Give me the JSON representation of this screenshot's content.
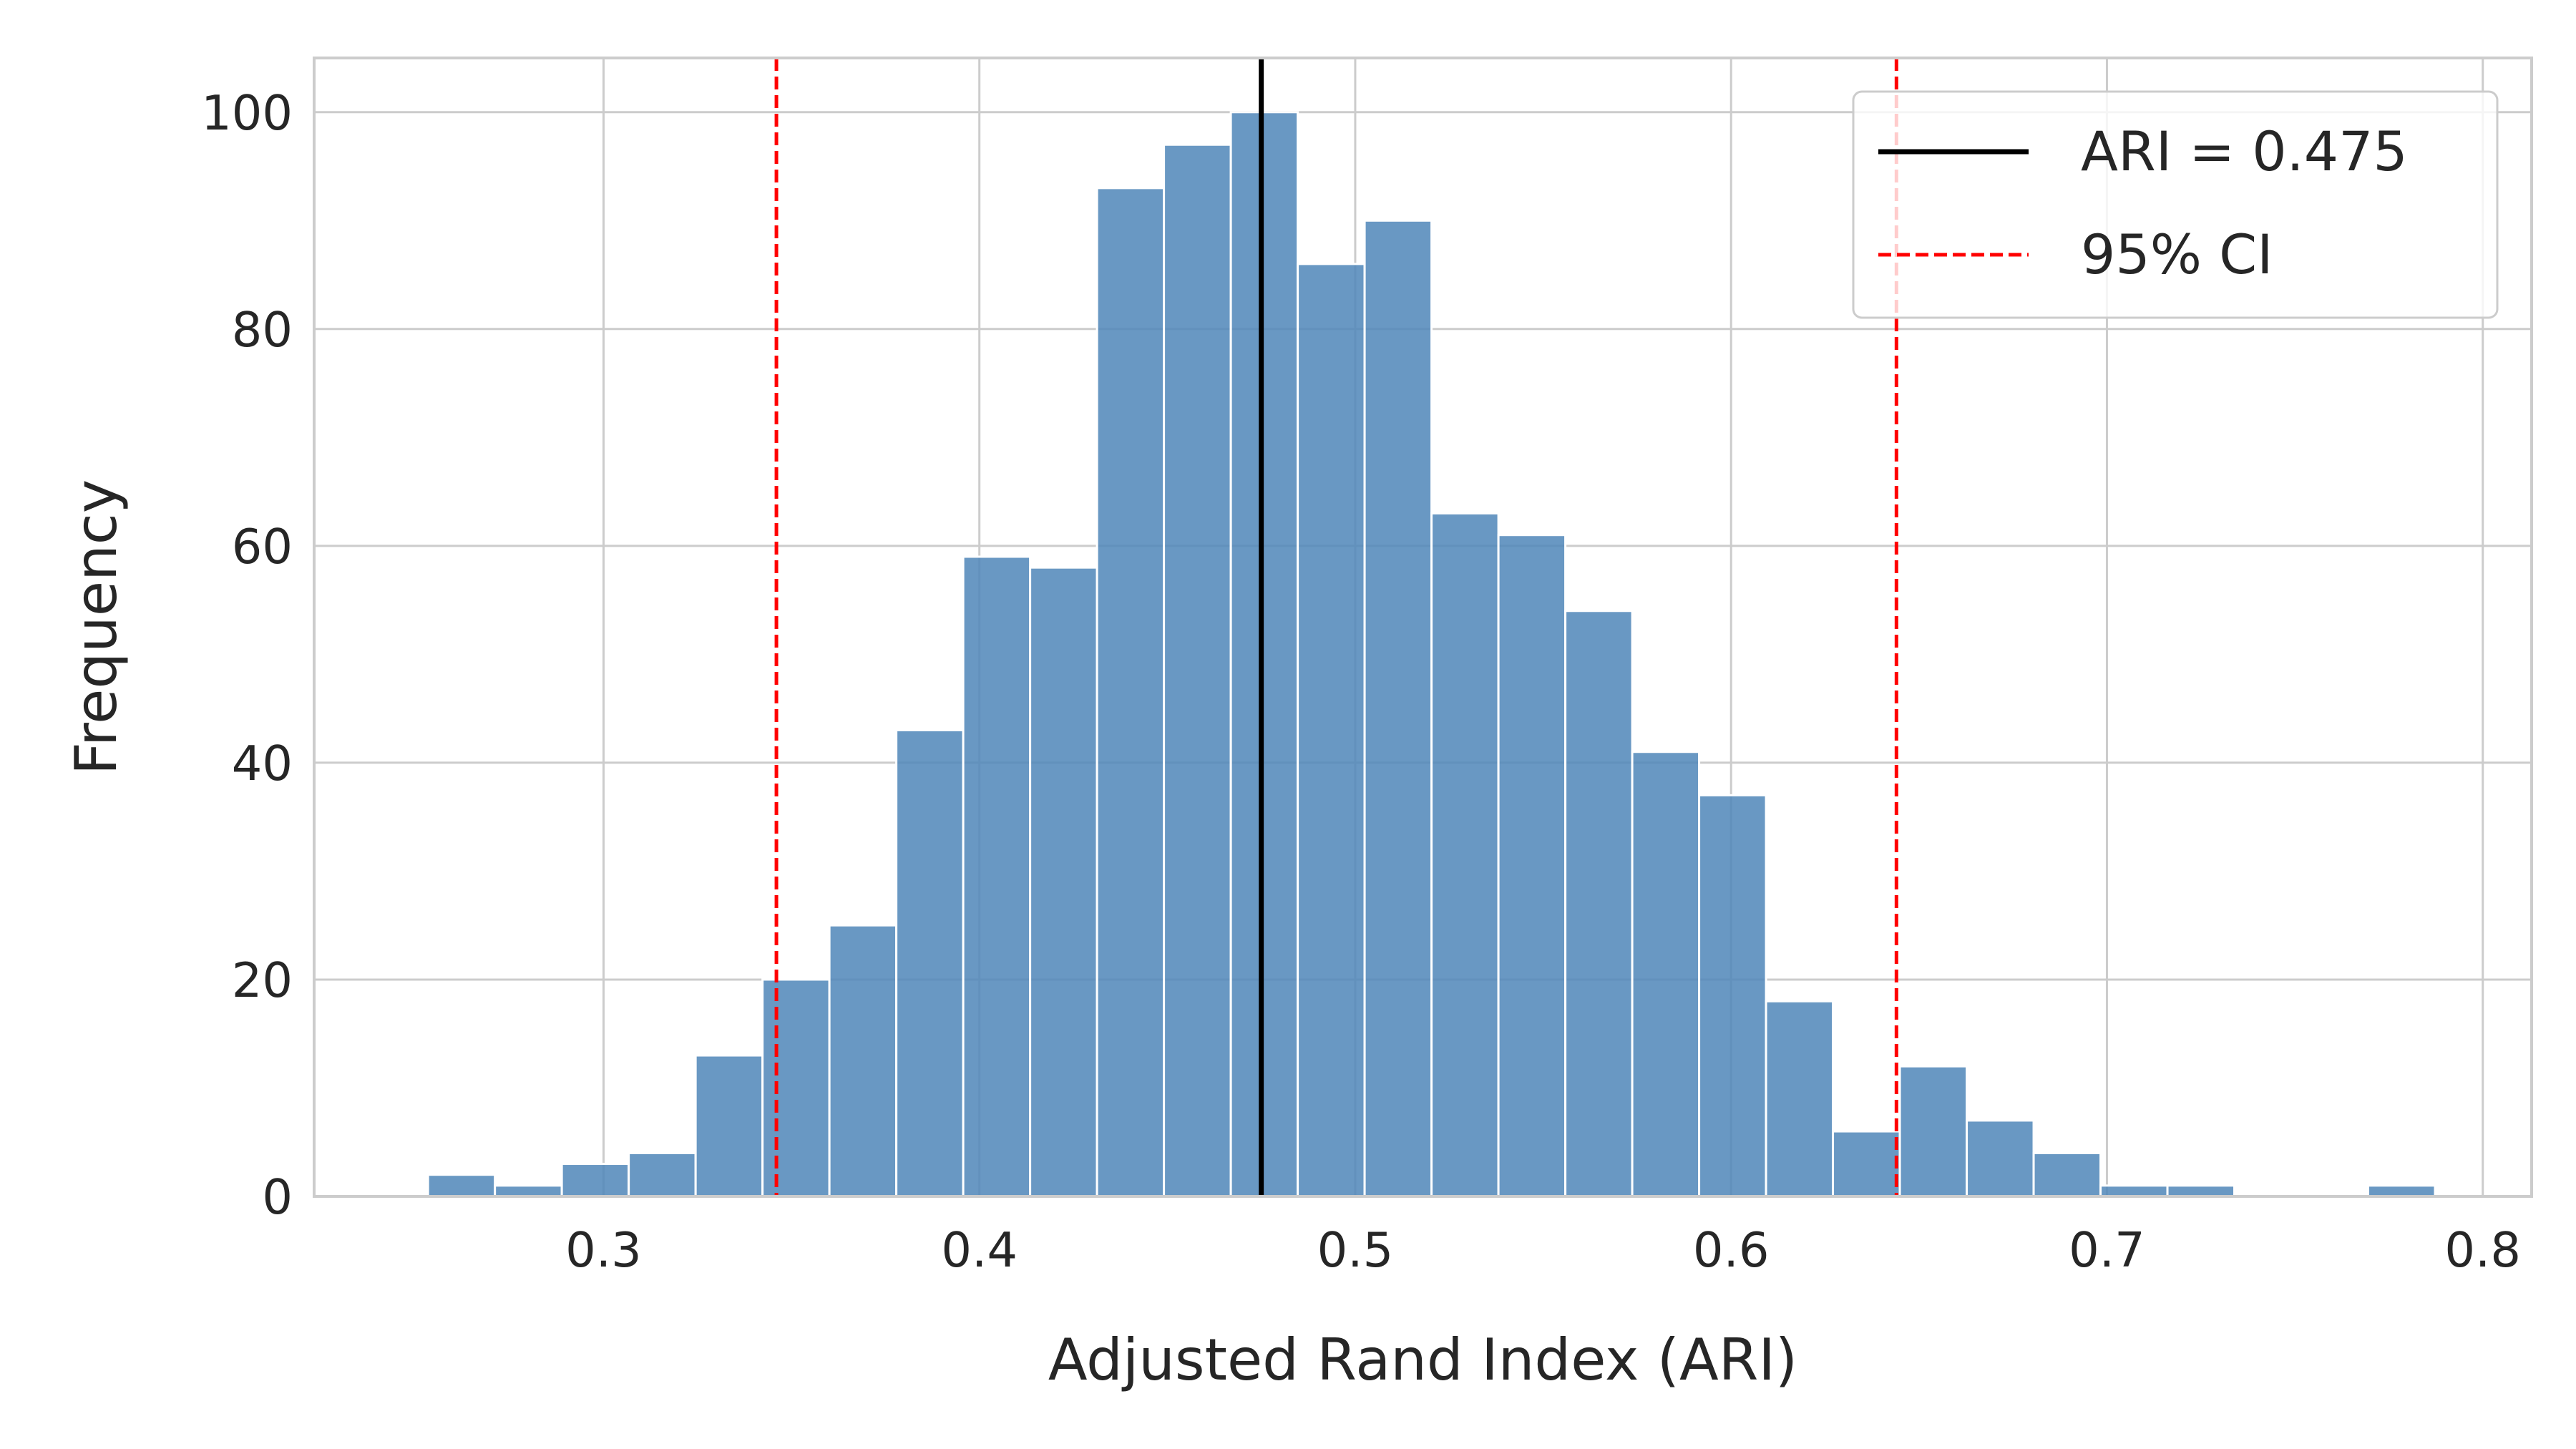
{
  "chart_data": {
    "type": "bar",
    "subtype": "histogram",
    "title": "",
    "xlabel": "Adjusted Rand Index (ARI)",
    "ylabel": "Frequency",
    "xlim": [
      0.223,
      0.813
    ],
    "ylim": [
      0,
      105
    ],
    "x_ticks": [
      0.3,
      0.4,
      0.5,
      0.6,
      0.7,
      0.8
    ],
    "x_tick_labels": [
      "0.3",
      "0.4",
      "0.5",
      "0.6",
      "0.7",
      "0.8"
    ],
    "y_ticks": [
      0,
      20,
      40,
      60,
      80,
      100
    ],
    "y_tick_labels": [
      "0",
      "20",
      "40",
      "60",
      "80",
      "100"
    ],
    "grid": true,
    "legend_position": "top-right",
    "bin_edges": [
      0.2533,
      0.2711,
      0.2889,
      0.3067,
      0.3245,
      0.3423,
      0.3601,
      0.3779,
      0.3957,
      0.4135,
      0.4313,
      0.4491,
      0.4669,
      0.4847,
      0.5025,
      0.5203,
      0.5381,
      0.5559,
      0.5737,
      0.5915,
      0.6093,
      0.6271,
      0.6449,
      0.6627,
      0.6805,
      0.6983,
      0.7161,
      0.7339,
      0.7517,
      0.7695,
      0.7873
    ],
    "counts": [
      2,
      1,
      3,
      4,
      13,
      20,
      25,
      43,
      59,
      58,
      93,
      97,
      100,
      86,
      90,
      63,
      61,
      54,
      41,
      37,
      18,
      6,
      12,
      7,
      4,
      1,
      1,
      0,
      0,
      1
    ],
    "bar_color": "#4f86b8",
    "reference_lines": [
      {
        "label": "ARI = 0.475",
        "x": 0.475,
        "style": "solid",
        "color": "#000000"
      },
      {
        "label": "95% CI",
        "x": 0.346,
        "style": "dashed",
        "color": "#ff0000"
      },
      {
        "label": "",
        "x": 0.644,
        "style": "dashed",
        "color": "#ff0000"
      }
    ],
    "legend": [
      {
        "label": "ARI = 0.475",
        "style": "solid",
        "color": "#000000"
      },
      {
        "label": "95% CI",
        "style": "dashed",
        "color": "#ff0000"
      }
    ]
  }
}
